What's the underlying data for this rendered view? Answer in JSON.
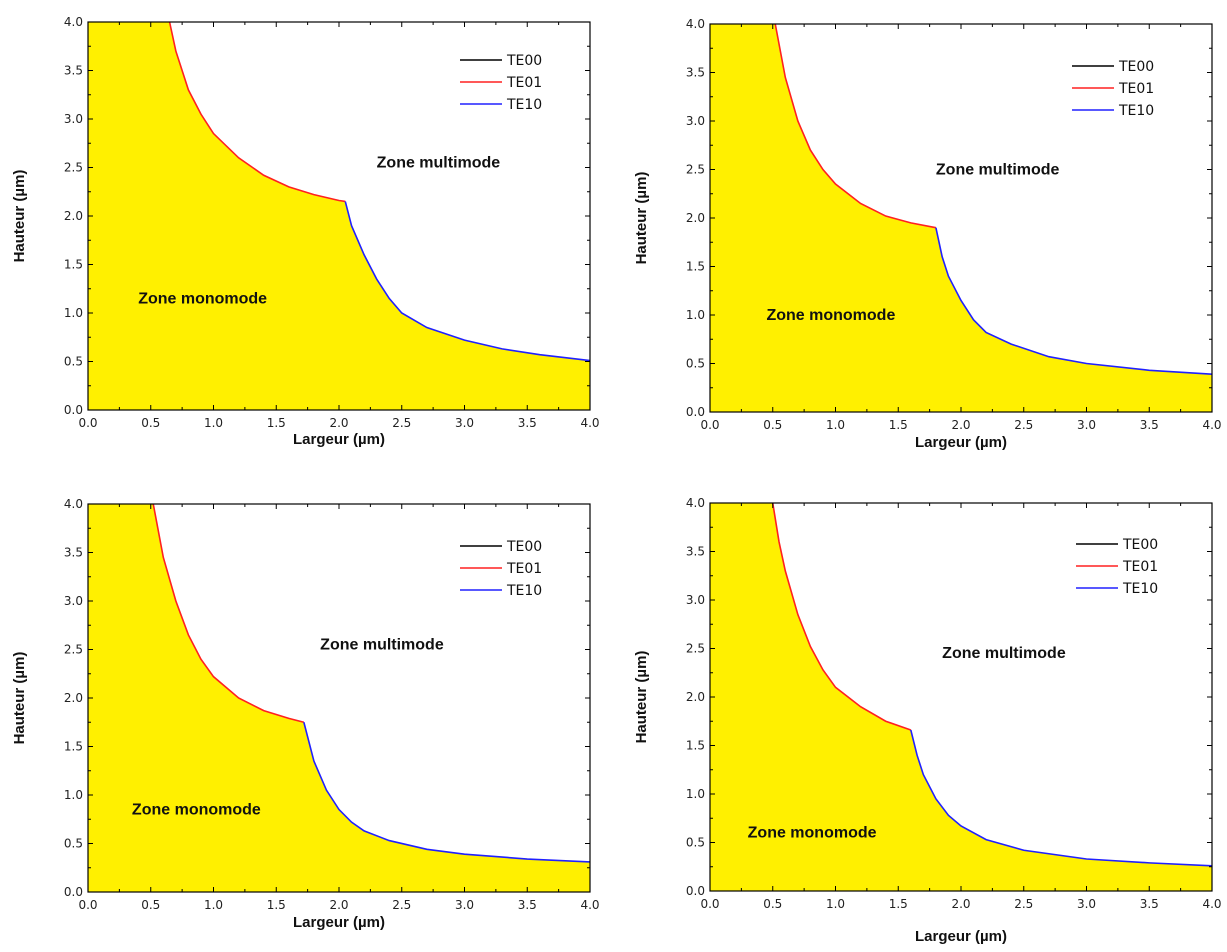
{
  "chart_data": [
    {
      "type": "area",
      "xlabel": "Largeur (µm)",
      "ylabel": "Hauteur (µm)",
      "xlim": [
        0.0,
        4.0
      ],
      "ylim": [
        0.0,
        4.0
      ],
      "xticks": [
        "0.0",
        "0.5",
        "1.0",
        "1.5",
        "2.0",
        "2.5",
        "3.0",
        "3.5",
        "4.0"
      ],
      "yticks": [
        "0.0",
        "0.5",
        "1.0",
        "1.5",
        "2.0",
        "2.5",
        "3.0",
        "3.5",
        "4.0"
      ],
      "legend": [
        "TE00",
        "TE01",
        "TE10"
      ],
      "legend_position": "top-right",
      "zone_multi": "Zone multimode",
      "zone_mono": "Zone monomode",
      "zone_multi_pos": [
        2.3,
        2.5
      ],
      "zone_mono_pos": [
        0.4,
        1.1
      ],
      "te01_curve": {
        "x": [
          0.65,
          0.7,
          0.8,
          0.9,
          1.0,
          1.2,
          1.4,
          1.6,
          1.8,
          2.0,
          2.05
        ],
        "y": [
          4.0,
          3.7,
          3.3,
          3.05,
          2.85,
          2.6,
          2.42,
          2.3,
          2.22,
          2.16,
          2.15
        ]
      },
      "te10_curve": {
        "x": [
          2.05,
          2.1,
          2.2,
          2.3,
          2.4,
          2.5,
          2.7,
          3.0,
          3.3,
          3.6,
          4.0
        ],
        "y": [
          2.15,
          1.9,
          1.6,
          1.35,
          1.15,
          1.0,
          0.85,
          0.72,
          0.63,
          0.57,
          0.51
        ]
      }
    },
    {
      "type": "area",
      "xlabel": "Largeur (µm)",
      "ylabel": "Hauteur (µm)",
      "xlim": [
        0.0,
        4.0
      ],
      "ylim": [
        0.0,
        4.0
      ],
      "xticks": [
        "0.0",
        "0.5",
        "1.0",
        "1.5",
        "2.0",
        "2.5",
        "3.0",
        "3.5",
        "4.0"
      ],
      "yticks": [
        "0.0",
        "0.5",
        "1.0",
        "1.5",
        "2.0",
        "2.5",
        "3.0",
        "3.5",
        "4.0"
      ],
      "legend": [
        "TE00",
        "TE01",
        "TE10"
      ],
      "legend_position": "top-right",
      "zone_multi": "Zone multimode",
      "zone_mono": "Zone monomode",
      "zone_multi_pos": [
        1.8,
        2.45
      ],
      "zone_mono_pos": [
        0.45,
        0.95
      ],
      "te01_curve": {
        "x": [
          0.52,
          0.6,
          0.7,
          0.8,
          0.9,
          1.0,
          1.2,
          1.4,
          1.6,
          1.8
        ],
        "y": [
          4.0,
          3.45,
          3.0,
          2.7,
          2.5,
          2.35,
          2.15,
          2.02,
          1.95,
          1.9
        ]
      },
      "te10_curve": {
        "x": [
          1.8,
          1.85,
          1.9,
          2.0,
          2.1,
          2.2,
          2.4,
          2.7,
          3.0,
          3.5,
          4.0
        ],
        "y": [
          1.9,
          1.6,
          1.4,
          1.15,
          0.95,
          0.82,
          0.7,
          0.57,
          0.5,
          0.43,
          0.39
        ]
      }
    },
    {
      "type": "area",
      "xlabel": "Largeur (µm)",
      "ylabel": "Hauteur (µm)",
      "xlim": [
        0.0,
        4.0
      ],
      "ylim": [
        0.0,
        4.0
      ],
      "xticks": [
        "0.0",
        "0.5",
        "1.0",
        "1.5",
        "2.0",
        "2.5",
        "3.0",
        "3.5",
        "4.0"
      ],
      "yticks": [
        "0.0",
        "0.5",
        "1.0",
        "1.5",
        "2.0",
        "2.5",
        "3.0",
        "3.5",
        "4.0"
      ],
      "legend": [
        "TE00",
        "TE01",
        "TE10"
      ],
      "legend_position": "top-right",
      "zone_multi": "Zone multimode",
      "zone_mono": "Zone monomode",
      "zone_multi_pos": [
        1.85,
        2.5
      ],
      "zone_mono_pos": [
        0.35,
        0.8
      ],
      "te01_curve": {
        "x": [
          0.52,
          0.6,
          0.7,
          0.8,
          0.9,
          1.0,
          1.2,
          1.4,
          1.6,
          1.72
        ],
        "y": [
          4.0,
          3.45,
          3.0,
          2.65,
          2.4,
          2.22,
          2.0,
          1.87,
          1.79,
          1.75
        ]
      },
      "te10_curve": {
        "x": [
          1.72,
          1.8,
          1.9,
          2.0,
          2.1,
          2.2,
          2.4,
          2.7,
          3.0,
          3.5,
          4.0
        ],
        "y": [
          1.75,
          1.35,
          1.05,
          0.85,
          0.72,
          0.63,
          0.53,
          0.44,
          0.39,
          0.34,
          0.31
        ]
      }
    },
    {
      "type": "area",
      "xlabel": "Largeur (µm)",
      "ylabel": "Hauteur (µm)",
      "xlim": [
        0.0,
        4.0
      ],
      "ylim": [
        0.0,
        4.0
      ],
      "xticks": [
        "0.0",
        "0.5",
        "1.0",
        "1.5",
        "2.0",
        "2.5",
        "3.0",
        "3.5",
        "4.0"
      ],
      "yticks": [
        "0.0",
        "0.5",
        "1.0",
        "1.5",
        "2.0",
        "2.5",
        "3.0",
        "3.5",
        "4.0"
      ],
      "legend": [
        "TE00",
        "TE01",
        "TE10"
      ],
      "legend_position": "top-right",
      "zone_multi": "Zone multimode",
      "zone_mono": "Zone monomode",
      "zone_multi_pos": [
        1.85,
        2.4
      ],
      "zone_mono_pos": [
        0.3,
        0.55
      ],
      "te01_curve": {
        "x": [
          0.5,
          0.55,
          0.6,
          0.7,
          0.8,
          0.9,
          1.0,
          1.2,
          1.4,
          1.6
        ],
        "y": [
          4.0,
          3.6,
          3.3,
          2.85,
          2.52,
          2.28,
          2.1,
          1.9,
          1.75,
          1.66
        ]
      },
      "te10_curve": {
        "x": [
          1.6,
          1.65,
          1.7,
          1.8,
          1.9,
          2.0,
          2.2,
          2.5,
          3.0,
          3.5,
          4.0
        ],
        "y": [
          1.66,
          1.4,
          1.2,
          0.95,
          0.78,
          0.67,
          0.53,
          0.42,
          0.33,
          0.29,
          0.26
        ]
      }
    }
  ],
  "colors": {
    "fill": "#fff000",
    "te00": "#000000",
    "te01": "#ff2020",
    "te10": "#2020ff"
  }
}
